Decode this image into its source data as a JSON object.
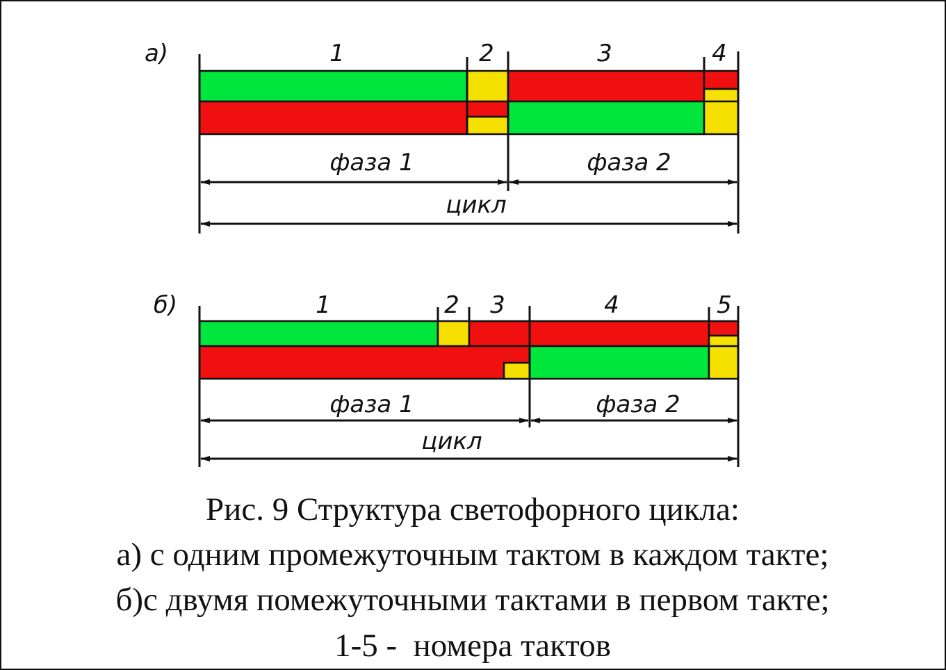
{
  "diagram_a": {
    "label": "а)",
    "tact_numbers": [
      "1",
      "2",
      "3",
      "4"
    ],
    "phases": [
      "фаза 1",
      "фаза 2"
    ],
    "cycle": "цикл"
  },
  "diagram_b": {
    "label": "б)",
    "tact_numbers": [
      "1",
      "2",
      "3",
      "4",
      "5"
    ],
    "phases": [
      "фаза 1",
      "фаза 2"
    ],
    "cycle": "цикл"
  },
  "caption": {
    "lines": [
      "Рис. 9 Структура светофорного цикла:",
      "а) с одним промежуточным тактом в каждом такте;",
      "б)с двумя помежуточными тактами в первом такте;",
      "1-5 -  номера тактов"
    ]
  }
}
